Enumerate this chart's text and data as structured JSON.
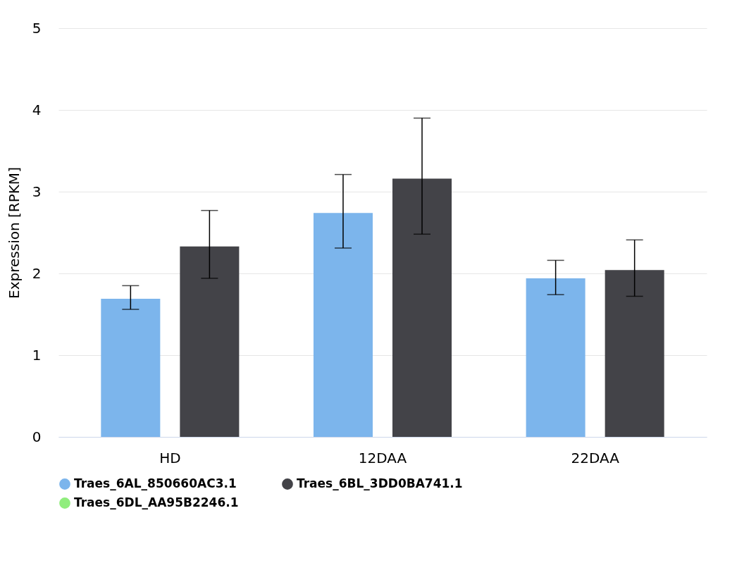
{
  "chart_data": {
    "type": "bar",
    "ylabel": "Expression [RPKM]",
    "categories": [
      "HD",
      "12DAA",
      "22DAA"
    ],
    "series": [
      {
        "name": "Traes_6AL_850660AC3.1",
        "color": "#7cb5ec",
        "values": [
          1.69,
          2.74,
          1.94
        ],
        "errors": [
          [
            1.56,
            1.85
          ],
          [
            2.31,
            3.21
          ],
          [
            1.74,
            2.16
          ]
        ]
      },
      {
        "name": "Traes_6BL_3DD0BA741.1",
        "color": "#434348",
        "values": [
          2.33,
          3.16,
          2.04
        ],
        "errors": [
          [
            1.94,
            2.77
          ],
          [
            2.48,
            3.9
          ],
          [
            1.72,
            2.41
          ]
        ]
      },
      {
        "name": "Traes_6DL_AA95B2246.1",
        "color": "#90ed7d",
        "values": [
          null,
          null,
          null
        ]
      }
    ],
    "ylim": [
      0,
      5
    ],
    "yticks": [
      0,
      1,
      2,
      3,
      4,
      5
    ],
    "grid": "y",
    "legend": "bottom"
  }
}
